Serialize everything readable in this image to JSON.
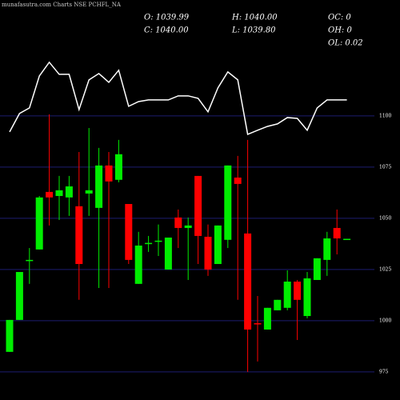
{
  "chart_data": {
    "type": "candlestick",
    "title": "munafasutra.com Charts NSE PCHFL_NA",
    "annotations": [
      "O: 1039.99",
      "H: 1040.00",
      "OC: 0",
      "C: 1040.00",
      "L: 1039.80",
      "OH: 0",
      "OL: 0.02"
    ],
    "ylim": [
      961.3,
      1156.6
    ],
    "yticks": [
      975,
      1000,
      1025,
      1050,
      1075,
      1100
    ],
    "grid": true,
    "up_color": "#00ee00",
    "down_color": "#ff0000",
    "open": [
      984.8,
      1000.4,
      1029.3,
      1034.8,
      1062.9,
      1060.9,
      1060.2,
      1055.9,
      1062.1,
      1055.1,
      1075.8,
      1068.8,
      1057.0,
      1018.0,
      1037.5,
      1038.7,
      1025.0,
      1050.4,
      1045.3,
      1070.7,
      1041.0,
      1027.7,
      1039.5,
      1069.9,
      1042.6,
      998.8,
      995.7,
      1005.1,
      1006.3,
      1019.1,
      1002.3,
      1019.9,
      1029.7,
      1045.3,
      1039.99
    ],
    "high": [
      1000.4,
      1023.8,
      1035.5,
      1060.9,
      1100.8,
      1070.7,
      1070.7,
      1082.4,
      1094.1,
      1084.4,
      1082.4,
      1088.3,
      1057.0,
      1043.4,
      1041.4,
      1047.0,
      1040.6,
      1054.3,
      1050.4,
      1070.7,
      1047.0,
      1046.5,
      1075.8,
      1080.5,
      1088.3,
      1012.1,
      1006.3,
      1010.2,
      1024.6,
      1019.9,
      1023.8,
      1030.5,
      1043.4,
      1054.3,
      1040.0
    ],
    "low": [
      984.8,
      1000.4,
      1018.0,
      1034.8,
      1046.5,
      1049.2,
      1051.2,
      1010.2,
      1051.2,
      1016.0,
      1016.0,
      1067.6,
      1027.7,
      1018.0,
      1033.6,
      1031.6,
      1025.0,
      1035.5,
      1019.9,
      1027.7,
      1021.9,
      1027.7,
      1035.5,
      1010.2,
      975.0,
      980.1,
      995.7,
      1005.1,
      1005.1,
      990.6,
      1001.2,
      1019.9,
      1021.9,
      1032.4,
      1039.8
    ],
    "close": [
      1000.4,
      1023.8,
      1029.7,
      1060.2,
      1060.2,
      1063.7,
      1065.6,
      1027.7,
      1063.7,
      1075.8,
      1068.0,
      1081.3,
      1029.7,
      1036.7,
      1038.0,
      1039.1,
      1040.6,
      1045.3,
      1046.5,
      1041.4,
      1025.0,
      1046.5,
      1075.8,
      1066.8,
      995.7,
      998.4,
      1006.3,
      1010.2,
      1019.1,
      1010.2,
      1020.7,
      1030.5,
      1040.2,
      1040.2,
      1040.0
    ],
    "line": {
      "color": "#ffffff",
      "values": [
        1092.2,
        1101.2,
        1103.9,
        1119.5,
        1126.2,
        1120.3,
        1120.3,
        1103.1,
        1117.6,
        1120.7,
        1116.4,
        1122.3,
        1104.7,
        1107.0,
        1107.8,
        1107.8,
        1107.8,
        1109.8,
        1109.8,
        1108.6,
        1102.0,
        1113.7,
        1121.5,
        1117.6,
        1091.0,
        1093.0,
        1094.9,
        1096.1,
        1099.2,
        1098.8,
        1093.0,
        1103.9,
        1107.8,
        1107.8,
        1107.8
      ]
    }
  }
}
